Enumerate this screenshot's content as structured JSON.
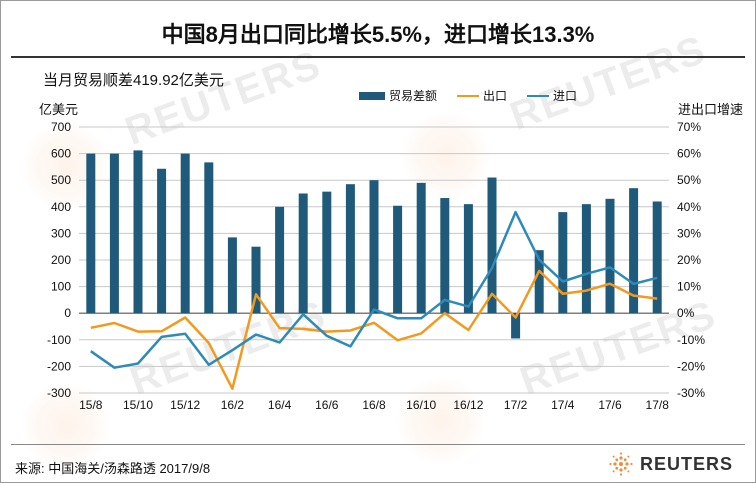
{
  "title": "中国8月出口同比增长5.5%，进口增长13.3%",
  "subtitle": "当月贸易顺差419.92亿美元",
  "left_axis_unit": "亿美元",
  "right_axis_unit": "进出口增速",
  "source": "来源: 中国海关/汤森路透   2017/9/8",
  "brand": {
    "name": "REUTERS"
  },
  "watermark_text": "REUTERS",
  "colors": {
    "bar": "#1f5a7a",
    "exports": "#f29a1f",
    "imports": "#2e8ab8",
    "grid": "#c8c8c8"
  },
  "chart_data": {
    "type": "bar+line",
    "categories": [
      "15/8",
      "15/9",
      "15/10",
      "15/11",
      "15/12",
      "16/1",
      "16/2",
      "16/3",
      "16/4",
      "16/5",
      "16/6",
      "16/7",
      "16/8",
      "16/9",
      "16/10",
      "16/11",
      "16/12",
      "17/1",
      "17/2",
      "17/3",
      "17/4",
      "17/5",
      "17/6",
      "17/7",
      "17/8"
    ],
    "x_tick_labels": [
      "15/8",
      "15/10",
      "15/12",
      "16/2",
      "16/4",
      "16/6",
      "16/8",
      "16/10",
      "16/12",
      "17/2",
      "17/4",
      "17/6",
      "17/8"
    ],
    "left_axis": {
      "ylim": [
        -300,
        700
      ],
      "ticks": [
        -300,
        -200,
        -100,
        0,
        100,
        200,
        300,
        400,
        500,
        600,
        700
      ]
    },
    "right_axis": {
      "ylim": [
        -0.3,
        0.7
      ],
      "ticks": [
        "-30%",
        "-20%",
        "-10%",
        "0%",
        "10%",
        "20%",
        "30%",
        "40%",
        "50%",
        "60%",
        "70%"
      ]
    },
    "series": [
      {
        "name": "贸易差额",
        "type": "bar",
        "axis": "left",
        "values": [
          600,
          600,
          612,
          543,
          600,
          567,
          285,
          250,
          400,
          450,
          457,
          485,
          500,
          404,
          490,
          433,
          410,
          510,
          -95,
          237,
          380,
          410,
          430,
          470,
          420
        ]
      },
      {
        "name": "出口",
        "type": "line",
        "axis": "right",
        "values": [
          -5.5,
          -3.7,
          -6.9,
          -6.8,
          -1.6,
          -11.2,
          -28.4,
          7.1,
          -5.6,
          -5.9,
          -6.9,
          -6.5,
          -3.6,
          -10.2,
          -7.6,
          0.0,
          -6.3,
          7.3,
          -1.6,
          15.9,
          7.3,
          8.5,
          11.1,
          6.6,
          5.5
        ]
      },
      {
        "name": "进口",
        "type": "line",
        "axis": "right",
        "values": [
          -14.3,
          -20.5,
          -18.9,
          -8.9,
          -7.7,
          -19.4,
          -13.9,
          -8.0,
          -11.0,
          -0.4,
          -8.5,
          -12.5,
          1.4,
          -1.9,
          -1.9,
          5.0,
          2.5,
          17.0,
          38.0,
          20.1,
          11.9,
          14.8,
          17.2,
          11.0,
          13.3
        ]
      }
    ]
  }
}
